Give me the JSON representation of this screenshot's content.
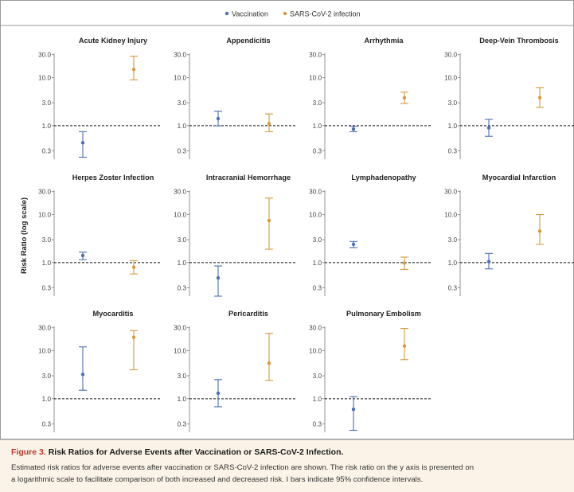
{
  "legend": {
    "items": [
      {
        "label": "Vaccination",
        "color": "#4a6fb5"
      },
      {
        "label": "SARS-CoV-2 infection",
        "color": "#d59a3a"
      }
    ]
  },
  "caption": {
    "figure_label": "Figure 3.",
    "title": "Risk Ratios for Adverse Events after Vaccination or SARS-CoV-2 Infection.",
    "line1": "Estimated risk ratios for adverse events after vaccination or SARS-CoV-2 infection are shown. The risk ratio on the y axis is presented on",
    "line2": "a logarithmic scale to facilitate comparison of both increased and decreased risk. I bars indicate 95% confidence intervals."
  },
  "chart_data": {
    "type": "scatter",
    "ylabel": "Risk Ratio (log scale)",
    "yscale": "log",
    "ylim": [
      0.2,
      32
    ],
    "yticks": [
      30.0,
      10.0,
      3.0,
      1.0,
      0.3
    ],
    "ytick_labels": [
      "30.0",
      "10.0",
      "3.0",
      "1.0",
      "0.3"
    ],
    "reference_line": 1.0,
    "series_names": [
      "Vaccination",
      "SARS-CoV-2 infection"
    ],
    "series_colors": [
      "#4a6fb5",
      "#d59a3a"
    ],
    "panels": [
      {
        "title": "Acute Kidney Injury",
        "points": [
          {
            "series": "Vaccination",
            "estimate": 0.44,
            "lower": 0.22,
            "upper": 0.75
          },
          {
            "series": "SARS-CoV-2 infection",
            "estimate": 14.8,
            "lower": 9.0,
            "upper": 28.0
          }
        ]
      },
      {
        "title": "Appendicitis",
        "points": [
          {
            "series": "Vaccination",
            "estimate": 1.4,
            "lower": 0.99,
            "upper": 2.0
          },
          {
            "series": "SARS-CoV-2 infection",
            "estimate": 1.1,
            "lower": 0.75,
            "upper": 1.75
          }
        ]
      },
      {
        "title": "Arrhythmia",
        "points": [
          {
            "series": "Vaccination",
            "estimate": 0.85,
            "lower": 0.75,
            "upper": 0.97
          },
          {
            "series": "SARS-CoV-2 infection",
            "estimate": 3.8,
            "lower": 2.9,
            "upper": 5.0
          }
        ]
      },
      {
        "title": "Deep-Vein Thrombosis",
        "points": [
          {
            "series": "Vaccination",
            "estimate": 0.9,
            "lower": 0.6,
            "upper": 1.35
          },
          {
            "series": "SARS-CoV-2 infection",
            "estimate": 3.8,
            "lower": 2.4,
            "upper": 6.2
          }
        ]
      },
      {
        "title": "Herpes Zoster Infection",
        "points": [
          {
            "series": "Vaccination",
            "estimate": 1.4,
            "lower": 1.15,
            "upper": 1.65
          },
          {
            "series": "SARS-CoV-2 infection",
            "estimate": 0.8,
            "lower": 0.58,
            "upper": 1.1
          }
        ]
      },
      {
        "title": "Intracranial Hemorrhage",
        "points": [
          {
            "series": "Vaccination",
            "estimate": 0.48,
            "lower": 0.2,
            "upper": 0.85
          },
          {
            "series": "SARS-CoV-2 infection",
            "estimate": 7.5,
            "lower": 1.9,
            "upper": 22.0
          }
        ]
      },
      {
        "title": "Lymphadenopathy",
        "points": [
          {
            "series": "Vaccination",
            "estimate": 2.4,
            "lower": 2.05,
            "upper": 2.75
          },
          {
            "series": "SARS-CoV-2 infection",
            "estimate": 0.98,
            "lower": 0.72,
            "upper": 1.3
          }
        ]
      },
      {
        "title": "Myocardial Infarction",
        "points": [
          {
            "series": "Vaccination",
            "estimate": 1.05,
            "lower": 0.74,
            "upper": 1.55
          },
          {
            "series": "SARS-CoV-2 infection",
            "estimate": 4.5,
            "lower": 2.4,
            "upper": 10.0
          }
        ]
      },
      {
        "title": "Myocarditis",
        "points": [
          {
            "series": "Vaccination",
            "estimate": 3.2,
            "lower": 1.5,
            "upper": 12.0
          },
          {
            "series": "SARS-CoV-2 infection",
            "estimate": 19.0,
            "lower": 4.0,
            "upper": 26.0
          }
        ]
      },
      {
        "title": "Pericarditis",
        "points": [
          {
            "series": "Vaccination",
            "estimate": 1.3,
            "lower": 0.68,
            "upper": 2.5
          },
          {
            "series": "SARS-CoV-2 infection",
            "estimate": 5.5,
            "lower": 2.4,
            "upper": 23.0
          }
        ]
      },
      {
        "title": "Pulmonary Embolism",
        "points": [
          {
            "series": "Vaccination",
            "estimate": 0.6,
            "lower": 0.22,
            "upper": 1.1
          },
          {
            "series": "SARS-CoV-2 infection",
            "estimate": 12.5,
            "lower": 6.5,
            "upper": 29.0
          }
        ]
      }
    ]
  }
}
